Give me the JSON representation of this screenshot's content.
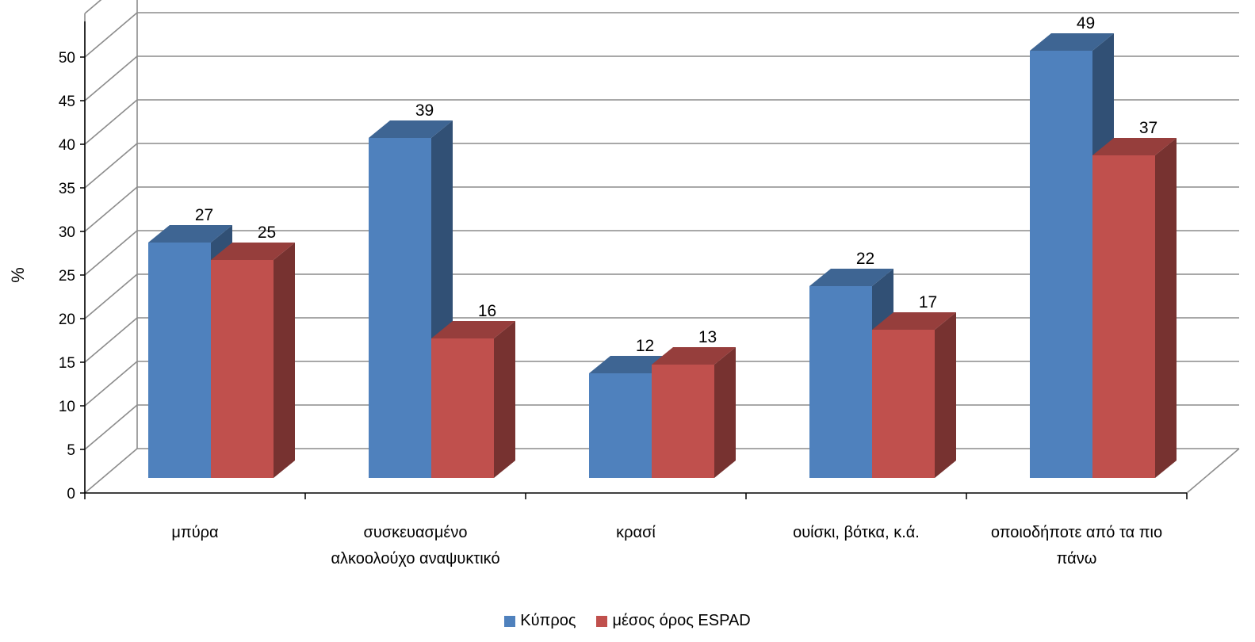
{
  "chart_data": {
    "type": "bar",
    "title": "",
    "xlabel": "",
    "ylabel": "%",
    "ylim": [
      0,
      50
    ],
    "yticks": [
      0,
      5,
      10,
      15,
      20,
      25,
      30,
      35,
      40,
      45,
      50
    ],
    "grid": true,
    "legend": "bottom",
    "categories": [
      [
        "μπύρα"
      ],
      [
        "συσκευασμένο",
        "αλκοολούχο αναψυκτικό"
      ],
      [
        "κρασί"
      ],
      [
        "ουίσκι, βότκα, κ.ά."
      ],
      [
        "οποιοδήποτε από τα πιο",
        "πάνω"
      ]
    ],
    "series": [
      {
        "name": "Κύπρος",
        "values": [
          27,
          39,
          12,
          22,
          49
        ],
        "color": "#4F81BD"
      },
      {
        "name": "μέσος όρος ESPAD",
        "values": [
          25,
          16,
          13,
          17,
          37
        ],
        "color": "#C0504D"
      }
    ]
  }
}
